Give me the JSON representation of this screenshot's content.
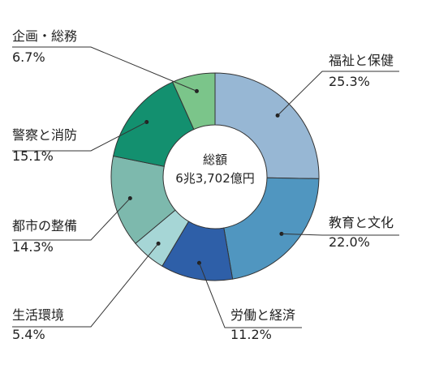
{
  "chart_data": {
    "type": "pie",
    "center_label": [
      "総額",
      "6兆3,702億円"
    ],
    "slices": [
      {
        "name": "福祉と保健",
        "value_label": "25.3%",
        "value": 25.3,
        "color": "#97b7d4"
      },
      {
        "name": "教育と文化",
        "value_label": "22.0%",
        "value": 22.0,
        "color": "#5096c0"
      },
      {
        "name": "労働と経済",
        "value_label": "11.2%",
        "value": 11.2,
        "color": "#2e5fa8"
      },
      {
        "name": "生活環境",
        "value_label": "5.4%",
        "value": 5.4,
        "color": "#a6d6d6"
      },
      {
        "name": "都市の整備",
        "value_label": "14.3%",
        "value": 14.3,
        "color": "#7db9ad"
      },
      {
        "name": "警察と消防",
        "value_label": "15.1%",
        "value": 15.1,
        "color": "#13906f"
      },
      {
        "name": "企画・総務",
        "value_label": "6.7%",
        "value": 6.7,
        "color": "#7bc58a"
      }
    ]
  }
}
